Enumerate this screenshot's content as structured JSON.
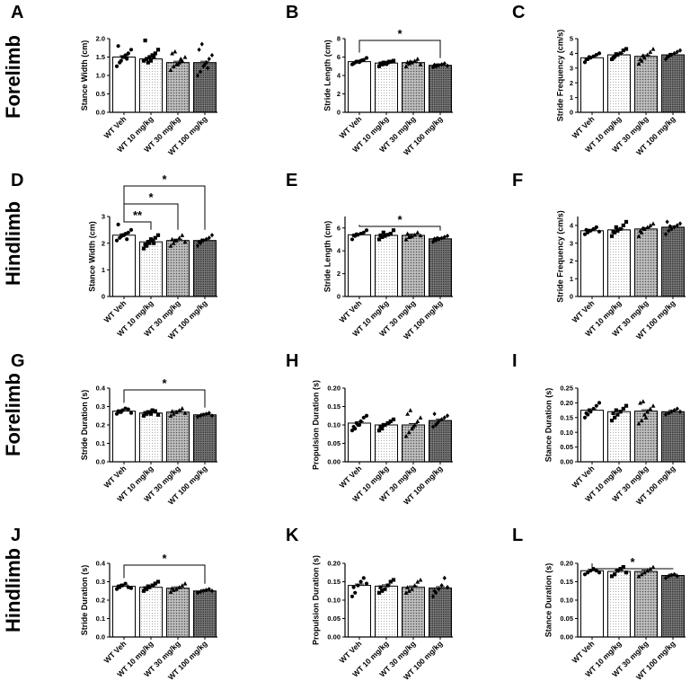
{
  "figure": {
    "row_labels": [
      "Forelimb",
      "Hindlimb",
      "Forelimb",
      "Hindlimb"
    ]
  },
  "chart_data": [
    {
      "letter": "A",
      "type": "bar",
      "ylabel": "Stance  Width (cm)",
      "categories": [
        "WT Veh",
        "WT 10 mg/kg",
        "WT 30 mg/kg",
        "WT 100 mg/kg"
      ],
      "values": [
        1.5,
        1.45,
        1.35,
        1.35
      ],
      "ylim": [
        0,
        2.0
      ],
      "yticks": [
        "0.0",
        "0.5",
        "1.0",
        "1.5",
        "2.0"
      ],
      "points": [
        [
          1.25,
          1.35,
          1.5,
          1.55,
          1.6,
          1.7,
          1.8,
          1.4,
          1.5,
          1.45
        ],
        [
          1.4,
          1.45,
          1.5,
          1.55,
          1.6,
          1.7,
          1.95,
          1.35,
          1.4,
          1.5
        ],
        [
          1.15,
          1.25,
          1.3,
          1.35,
          1.4,
          1.5,
          1.6,
          1.65,
          1.3,
          1.45
        ],
        [
          1.0,
          1.1,
          1.25,
          1.35,
          1.45,
          1.55,
          1.7,
          1.85,
          1.3,
          1.2
        ]
      ],
      "brackets": []
    },
    {
      "letter": "B",
      "type": "bar",
      "ylabel": "Stride Length (cm)",
      "categories": [
        "WT Veh",
        "WT 10 mg/kg",
        "WT 30 mg/kg",
        "WT 100 mg/kg"
      ],
      "values": [
        5.5,
        5.35,
        5.4,
        5.1
      ],
      "ylim": [
        0,
        8
      ],
      "yticks": [
        "0",
        "2",
        "4",
        "6",
        "8"
      ],
      "points": [
        [
          5.2,
          5.4,
          5.5,
          5.6,
          5.7,
          5.9,
          5.3,
          5.5,
          5.45,
          5.65
        ],
        [
          5.0,
          5.2,
          5.3,
          5.4,
          5.5,
          5.6,
          5.3,
          5.4,
          5.25,
          5.5
        ],
        [
          5.0,
          5.3,
          5.4,
          5.6,
          5.8,
          5.2,
          5.45,
          5.5
        ],
        [
          4.9,
          5.0,
          5.1,
          5.2,
          5.3,
          5.05,
          5.15,
          5.1
        ]
      ],
      "brackets": [
        {
          "from": 0,
          "to": 3,
          "label": "*"
        }
      ]
    },
    {
      "letter": "C",
      "type": "bar",
      "ylabel": "Stride Frequency (cm/s)",
      "categories": [
        "WT Veh",
        "WT 10 mg/kg",
        "WT 30 mg/kg",
        "WT 100 mg/kg"
      ],
      "values": [
        3.7,
        3.9,
        3.8,
        3.9
      ],
      "ylim": [
        0,
        5
      ],
      "yticks": [
        "0",
        "1",
        "2",
        "3",
        "4",
        "5"
      ],
      "points": [
        [
          3.4,
          3.6,
          3.7,
          3.8,
          3.9,
          4.0,
          3.6,
          3.75
        ],
        [
          3.6,
          3.8,
          3.9,
          4.0,
          4.2,
          4.3,
          3.7,
          3.95
        ],
        [
          3.3,
          3.5,
          3.7,
          3.9,
          4.1,
          4.3,
          3.6,
          3.85
        ],
        [
          3.6,
          3.8,
          3.9,
          4.0,
          4.1,
          4.2,
          3.75,
          3.9
        ]
      ],
      "brackets": []
    },
    {
      "letter": "D",
      "type": "bar",
      "ylabel": "Stance  Width (cm)",
      "categories": [
        "WT Veh",
        "WT 10 mg/kg",
        "WT 30 mg/kg",
        "WT 100 mg/kg"
      ],
      "values": [
        2.3,
        2.05,
        2.1,
        2.1
      ],
      "ylim": [
        0,
        3
      ],
      "yticks": [
        "0",
        "1",
        "2",
        "3"
      ],
      "points": [
        [
          2.1,
          2.2,
          2.3,
          2.35,
          2.4,
          2.5,
          2.7,
          2.25,
          2.3,
          2.15
        ],
        [
          1.8,
          1.9,
          2.0,
          2.1,
          2.2,
          2.3,
          1.95,
          2.05,
          2.15,
          2.0
        ],
        [
          1.9,
          2.0,
          2.1,
          2.2,
          2.3,
          2.05,
          2.15,
          2.1
        ],
        [
          1.9,
          2.0,
          2.1,
          2.15,
          2.2,
          2.3,
          2.05,
          2.1
        ]
      ],
      "brackets": [
        {
          "from": 0,
          "to": 1,
          "label": "**"
        },
        {
          "from": 0,
          "to": 2,
          "label": "*"
        },
        {
          "from": 0,
          "to": 3,
          "label": "*"
        }
      ]
    },
    {
      "letter": "E",
      "type": "bar",
      "ylabel": "Stride Length (cm)",
      "categories": [
        "WT Veh",
        "WT 10 mg/kg",
        "WT 30 mg/kg",
        "WT 100 mg/kg"
      ],
      "values": [
        5.4,
        5.35,
        5.35,
        5.05
      ],
      "ylim": [
        0,
        7
      ],
      "yticks": [
        "0",
        "2",
        "4",
        "6"
      ],
      "points": [
        [
          5.0,
          5.3,
          5.4,
          5.5,
          5.6,
          5.8,
          5.35,
          5.45
        ],
        [
          5.0,
          5.2,
          5.3,
          5.4,
          5.5,
          5.8,
          5.35,
          5.6
        ],
        [
          5.0,
          5.2,
          5.3,
          5.4,
          5.6,
          5.35,
          5.5,
          5.25
        ],
        [
          4.8,
          4.9,
          5.0,
          5.1,
          5.2,
          5.3,
          5.05,
          5.1
        ]
      ],
      "brackets": [
        {
          "from": 0,
          "to": 3,
          "label": "*"
        }
      ]
    },
    {
      "letter": "F",
      "type": "bar",
      "ylabel": "Stride Frequency (cm/s)",
      "categories": [
        "WT Veh",
        "WT 10 mg/kg",
        "WT 30 mg/kg",
        "WT 100 mg/kg"
      ],
      "values": [
        3.7,
        3.75,
        3.8,
        3.9
      ],
      "ylim": [
        0,
        4.5
      ],
      "yticks": [
        "0",
        "1",
        "2",
        "3",
        "4"
      ],
      "points": [
        [
          3.5,
          3.6,
          3.7,
          3.8,
          3.9,
          3.65,
          3.75,
          3.7
        ],
        [
          3.4,
          3.6,
          3.7,
          3.8,
          4.0,
          4.2,
          3.65,
          3.9
        ],
        [
          3.4,
          3.6,
          3.8,
          3.9,
          4.0,
          4.1,
          3.7,
          3.85
        ],
        [
          3.5,
          3.7,
          3.8,
          3.9,
          4.0,
          4.1,
          4.2,
          3.95
        ]
      ],
      "brackets": []
    },
    {
      "letter": "G",
      "type": "bar",
      "ylabel": "Stride Duration (s)",
      "categories": [
        "WT Veh",
        "WT 10 mg/kg",
        "WT 30 mg/kg",
        "WT 100 mg/kg"
      ],
      "values": [
        0.275,
        0.265,
        0.27,
        0.255
      ],
      "ylim": [
        0,
        0.4
      ],
      "yticks": [
        "0.0",
        "0.1",
        "0.2",
        "0.3",
        "0.4"
      ],
      "points": [
        [
          0.26,
          0.27,
          0.28,
          0.29,
          0.285,
          0.265,
          0.275,
          0.27
        ],
        [
          0.25,
          0.26,
          0.27,
          0.28,
          0.275,
          0.255,
          0.265,
          0.27,
          0.26
        ],
        [
          0.25,
          0.26,
          0.27,
          0.28,
          0.29,
          0.265,
          0.275
        ],
        [
          0.245,
          0.25,
          0.255,
          0.26,
          0.265,
          0.25
        ]
      ],
      "brackets": [
        {
          "from": 0,
          "to": 3,
          "label": "*"
        }
      ]
    },
    {
      "letter": "H",
      "type": "bar",
      "ylabel": "Propulsion Duration (s)",
      "categories": [
        "WT Veh",
        "WT 10 mg/kg",
        "WT 30 mg/kg",
        "WT 100 mg/kg"
      ],
      "values": [
        0.105,
        0.1,
        0.1,
        0.112
      ],
      "ylim": [
        0,
        0.2
      ],
      "yticks": [
        "0.00",
        "0.05",
        "0.10",
        "0.15",
        "0.20"
      ],
      "points": [
        [
          0.085,
          0.09,
          0.1,
          0.11,
          0.12,
          0.125,
          0.095,
          0.105,
          0.1
        ],
        [
          0.085,
          0.09,
          0.1,
          0.105,
          0.11,
          0.115,
          0.095,
          0.1
        ],
        [
          0.07,
          0.08,
          0.09,
          0.1,
          0.11,
          0.12,
          0.13,
          0.14,
          0.095
        ],
        [
          0.095,
          0.1,
          0.11,
          0.115,
          0.12,
          0.125,
          0.13,
          0.105
        ]
      ],
      "brackets": []
    },
    {
      "letter": "I",
      "type": "bar",
      "ylabel": "Stance Duration (s)",
      "categories": [
        "WT Veh",
        "WT 10 mg/kg",
        "WT 30 mg/kg",
        "WT 100 mg/kg"
      ],
      "values": [
        0.175,
        0.17,
        0.172,
        0.17
      ],
      "ylim": [
        0,
        0.25
      ],
      "yticks": [
        "0.00",
        "0.05",
        "0.10",
        "0.15",
        "0.20",
        "0.25"
      ],
      "points": [
        [
          0.15,
          0.16,
          0.17,
          0.18,
          0.19,
          0.2,
          0.165,
          0.175
        ],
        [
          0.14,
          0.15,
          0.16,
          0.17,
          0.18,
          0.19,
          0.165,
          0.175
        ],
        [
          0.13,
          0.14,
          0.16,
          0.17,
          0.18,
          0.19,
          0.2,
          0.205,
          0.15
        ],
        [
          0.16,
          0.165,
          0.17,
          0.175,
          0.18,
          0.17
        ]
      ],
      "brackets": []
    },
    {
      "letter": "J",
      "type": "bar",
      "ylabel": "Stride Duration (s)",
      "categories": [
        "WT Veh",
        "WT 10 mg/kg",
        "WT 30 mg/kg",
        "WT 100 mg/kg"
      ],
      "values": [
        0.275,
        0.27,
        0.265,
        0.25
      ],
      "ylim": [
        0,
        0.4
      ],
      "yticks": [
        "0.0",
        "0.1",
        "0.2",
        "0.3",
        "0.4"
      ],
      "points": [
        [
          0.26,
          0.27,
          0.28,
          0.29,
          0.27,
          0.265,
          0.275,
          0.28
        ],
        [
          0.25,
          0.26,
          0.27,
          0.28,
          0.29,
          0.3,
          0.265,
          0.275
        ],
        [
          0.245,
          0.255,
          0.26,
          0.27,
          0.28,
          0.29,
          0.265
        ],
        [
          0.24,
          0.245,
          0.25,
          0.255,
          0.26,
          0.25
        ]
      ],
      "brackets": [
        {
          "from": 0,
          "to": 3,
          "label": "*"
        }
      ]
    },
    {
      "letter": "K",
      "type": "bar",
      "ylabel": "Propulsion Duration (s)",
      "categories": [
        "WT Veh",
        "WT 10 mg/kg",
        "WT 30 mg/kg",
        "WT 100 mg/kg"
      ],
      "values": [
        0.14,
        0.138,
        0.135,
        0.133
      ],
      "ylim": [
        0,
        0.2
      ],
      "yticks": [
        "0.00",
        "0.05",
        "0.10",
        "0.15",
        "0.20"
      ],
      "points": [
        [
          0.11,
          0.12,
          0.14,
          0.15,
          0.16,
          0.145,
          0.135
        ],
        [
          0.12,
          0.125,
          0.13,
          0.14,
          0.15,
          0.155,
          0.135
        ],
        [
          0.12,
          0.125,
          0.13,
          0.14,
          0.15,
          0.155,
          0.135
        ],
        [
          0.11,
          0.12,
          0.13,
          0.14,
          0.16,
          0.135,
          0.125
        ]
      ],
      "brackets": []
    },
    {
      "letter": "L",
      "type": "bar",
      "ylabel": "Stance Duration (s)",
      "categories": [
        "WT Veh",
        "WT 10 mg/kg",
        "WT 30 mg/kg",
        "WT 100 mg/kg"
      ],
      "values": [
        0.18,
        0.178,
        0.178,
        0.167
      ],
      "ylim": [
        0,
        0.2
      ],
      "yticks": [
        "0.00",
        "0.05",
        "0.10",
        "0.15",
        "0.20"
      ],
      "points": [
        [
          0.17,
          0.175,
          0.18,
          0.185,
          0.18,
          0.175
        ],
        [
          0.165,
          0.17,
          0.18,
          0.185,
          0.19,
          0.175
        ],
        [
          0.165,
          0.17,
          0.175,
          0.18,
          0.185,
          0.19
        ],
        [
          0.16,
          0.165,
          0.168,
          0.17,
          0.165
        ]
      ],
      "brackets": [
        {
          "from": 0,
          "to": 3,
          "label": "*"
        }
      ]
    }
  ]
}
